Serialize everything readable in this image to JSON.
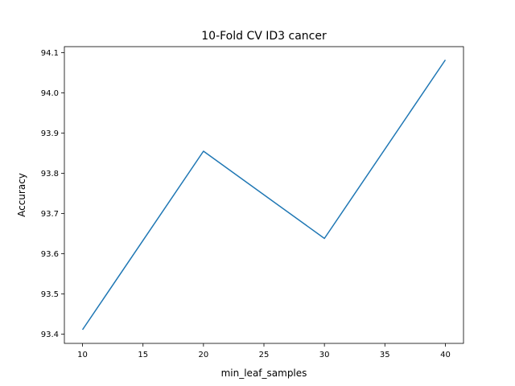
{
  "chart_data": {
    "type": "line",
    "title": "10-Fold CV  ID3 cancer",
    "xlabel": "min_leaf_samples",
    "ylabel": "Accuracy",
    "xlim": [
      8.5,
      41.5
    ],
    "ylim": [
      93.377,
      94.115
    ],
    "xticks": [
      10,
      15,
      20,
      25,
      30,
      35,
      40
    ],
    "yticks": [
      93.4,
      93.5,
      93.6,
      93.7,
      93.8,
      93.9,
      94.0,
      94.1
    ],
    "grid": false,
    "series": [
      {
        "x": [
          10,
          20,
          30,
          40
        ],
        "y": [
          93.411,
          93.855,
          93.638,
          94.082
        ],
        "color": "#1f77b4"
      }
    ]
  }
}
